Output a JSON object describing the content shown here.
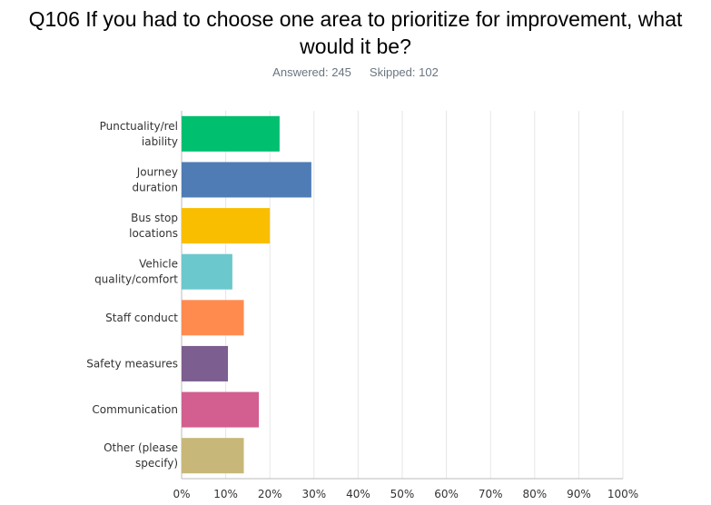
{
  "question": {
    "title": "Q106 If you had to choose one area to prioritize for improvement, what would it be?",
    "answered": "Answered: 245",
    "skipped": "Skipped: 102"
  },
  "chart_data": {
    "type": "bar",
    "orientation": "horizontal",
    "categories": [
      [
        "Punctuality/rel",
        "iability"
      ],
      [
        "Journey",
        "duration"
      ],
      [
        "Bus stop",
        "locations"
      ],
      [
        "Vehicle",
        "quality/comfort"
      ],
      [
        "Staff conduct"
      ],
      [
        "Safety measures"
      ],
      [
        "Communication"
      ],
      [
        "Other (please",
        "specify)"
      ]
    ],
    "values": [
      22.2,
      29.4,
      20.0,
      11.5,
      14.1,
      10.5,
      17.5,
      14.1
    ],
    "colors": [
      "#00bf6f",
      "#507cb6",
      "#f9be00",
      "#6bc8cd",
      "#ff8b4f",
      "#7d5e90",
      "#d25f90",
      "#c7b879"
    ],
    "xlim": [
      0,
      100
    ],
    "xticks": [
      "0%",
      "10%",
      "20%",
      "30%",
      "40%",
      "50%",
      "60%",
      "70%",
      "80%",
      "90%",
      "100%"
    ],
    "grid": true,
    "unit": "%"
  }
}
